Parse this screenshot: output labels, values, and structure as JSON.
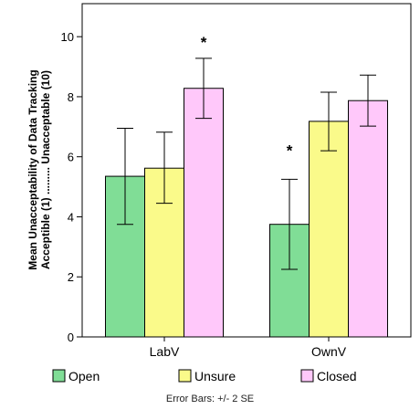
{
  "chart_data": {
    "type": "bar",
    "categories": [
      "LabV",
      "OwnV"
    ],
    "series": [
      {
        "name": "Open",
        "color": "#80dd96",
        "values": [
          5.35,
          3.75
        ],
        "error_low": [
          3.75,
          2.25
        ],
        "error_high": [
          6.95,
          5.25
        ]
      },
      {
        "name": "Unsure",
        "color": "#fafa8a",
        "values": [
          5.62,
          7.18
        ],
        "error_low": [
          4.45,
          6.2
        ],
        "error_high": [
          6.82,
          8.15
        ]
      },
      {
        "name": "Closed",
        "color": "#ffc8fa",
        "values": [
          8.28,
          7.87
        ],
        "error_low": [
          7.28,
          7.02
        ],
        "error_high": [
          9.28,
          8.72
        ]
      }
    ],
    "ylabel_line1": "Mean Unacceptability of Data Tracking",
    "ylabel_line2": "Acceptible (1) ......... Unacceptable (10)",
    "ylim": [
      0,
      11.1
    ],
    "yticks": [
      "0",
      "2",
      "4",
      "6",
      "8",
      "10"
    ],
    "annotations": [
      {
        "text": "*",
        "category": "LabV",
        "series": "Closed",
        "y": 10.0
      },
      {
        "text": "*",
        "category": "OwnV",
        "series": "Open",
        "y": 6.4
      }
    ],
    "legend_position": "bottom",
    "footnote": "Error Bars: +/- 2 SE",
    "grid": false
  }
}
